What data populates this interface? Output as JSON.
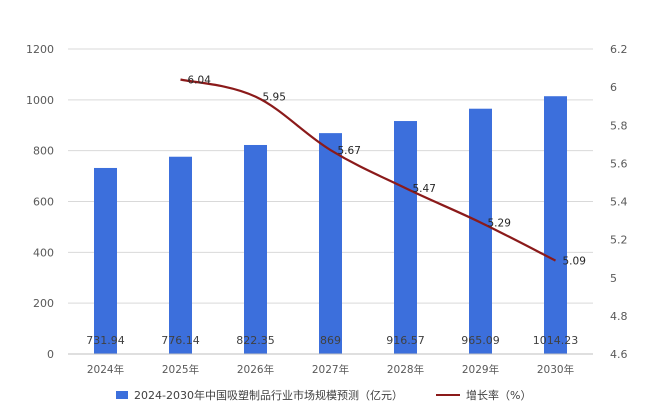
{
  "chart_data": {
    "type": "bar",
    "categories": [
      "2024年",
      "2025年",
      "2026年",
      "2027年",
      "2028年",
      "2029年",
      "2030年"
    ],
    "series": [
      {
        "name": "2024-2030年中国吸塑制品行业市场规模预测（亿元）",
        "type": "bar",
        "axis": "left",
        "values": [
          731.94,
          776.14,
          822.35,
          869,
          916.57,
          965.09,
          1014.23
        ],
        "labels": [
          "731.94",
          "776.14",
          "822.35",
          "869",
          "916.57",
          "965.09",
          "1014.23"
        ],
        "color": "#3c6fdc"
      },
      {
        "name": "增长率（%）",
        "type": "line",
        "axis": "right",
        "values": [
          null,
          6.04,
          5.95,
          5.67,
          5.47,
          5.29,
          5.09
        ],
        "labels": [
          "",
          "6.04",
          "5.95",
          "5.67",
          "5.47",
          "5.29",
          "5.09"
        ],
        "color": "#8b1a1a"
      }
    ],
    "left_axis": {
      "min": 0,
      "max": 1200,
      "ticks": [
        "0",
        "200",
        "400",
        "600",
        "800",
        "1000",
        "1200"
      ]
    },
    "right_axis": {
      "min": 4.6,
      "max": 6.2,
      "ticks": [
        "4.6",
        "4.8",
        "5",
        "5.2",
        "5.4",
        "5.6",
        "5.8",
        "6",
        "6.2"
      ]
    },
    "grid": true,
    "legend": "bottom"
  }
}
